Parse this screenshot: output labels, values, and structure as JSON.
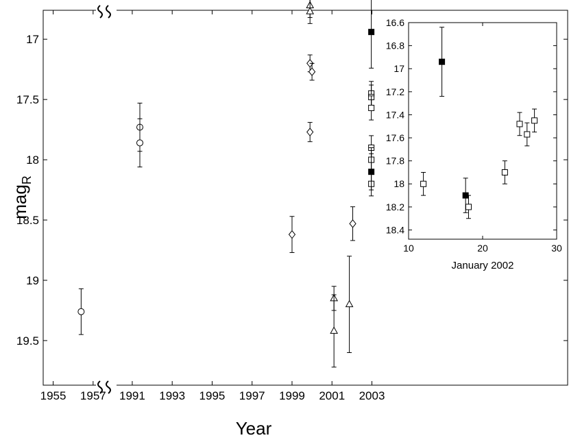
{
  "chart_data": [
    {
      "type": "scatter",
      "xlabel": "Year",
      "ylabel": "mag",
      "ylabel_subscript": "R",
      "y_inverted": true,
      "ylim": [
        16.76,
        19.87
      ],
      "yticks": [
        17,
        17.5,
        18,
        18.5,
        19,
        19.5
      ],
      "axis_break": true,
      "x_segments": [
        {
          "xlim": [
            1954.5,
            1957.8
          ],
          "xticks": [
            1955,
            1957
          ]
        },
        {
          "xlim": [
            1989.84,
            2012.8
          ],
          "xticks": [
            1991,
            1993,
            1995,
            1997,
            1999,
            2001,
            2003
          ]
        }
      ],
      "series": [
        {
          "marker": "circle",
          "filled": false,
          "color": "#000000",
          "x": [
            1956.4,
            1991.38,
            1991.38
          ],
          "values": [
            19.26,
            17.73,
            17.86
          ],
          "errors": [
            0.19,
            0.2,
            0.2
          ]
        },
        {
          "marker": "triangle",
          "filled": false,
          "color": "#000000",
          "x": [
            1999.9,
            1999.9,
            2001.1,
            2001.1,
            2001.87
          ],
          "values": [
            16.72,
            16.77,
            19.15,
            19.42,
            19.2
          ],
          "errors": [
            0.1,
            0.1,
            0.1,
            0.3,
            0.4
          ]
        },
        {
          "marker": "diamond",
          "filled": false,
          "color": "#000000",
          "x": [
            1999.0,
            1999.9,
            2000.0,
            1999.9,
            2002.04
          ],
          "values": [
            18.62,
            17.2,
            17.27,
            17.77,
            18.53
          ],
          "errors": [
            0.15,
            0.07,
            0.07,
            0.08,
            0.14
          ]
        },
        {
          "marker": "square",
          "filled": false,
          "color": "#000000",
          "x": [
            2002.97,
            2002.97,
            2002.97,
            2002.97,
            2002.97,
            2002.97
          ],
          "values": [
            17.45,
            17.48,
            17.57,
            17.9,
            18.0,
            18.2
          ],
          "errors": [
            0.1,
            0.1,
            0.1,
            0.1,
            0.1,
            0.1
          ]
        },
        {
          "marker": "square",
          "filled": true,
          "color": "#000000",
          "x": [
            2002.97,
            2002.97
          ],
          "values": [
            16.94,
            18.1
          ],
          "errors": [
            0.3,
            0.15
          ]
        }
      ]
    },
    {
      "type": "scatter",
      "xlabel": "January 2002",
      "y_inverted": true,
      "xlim": [
        10,
        30
      ],
      "xticks": [
        10,
        20,
        30
      ],
      "ylim": [
        16.6,
        18.48
      ],
      "yticks": [
        16.6,
        16.8,
        17,
        17.2,
        17.4,
        17.6,
        17.8,
        18,
        18.2,
        18.4
      ],
      "series": [
        {
          "marker": "square",
          "filled": false,
          "color": "#000000",
          "x": [
            12,
            18.1,
            23,
            25,
            26,
            27
          ],
          "values": [
            18.0,
            18.2,
            17.9,
            17.48,
            17.57,
            17.45
          ],
          "errors": [
            0.1,
            0.1,
            0.1,
            0.1,
            0.1,
            0.1
          ]
        },
        {
          "marker": "square",
          "filled": true,
          "color": "#000000",
          "x": [
            14.5,
            17.7
          ],
          "values": [
            16.94,
            18.1
          ],
          "errors": [
            0.3,
            0.15
          ]
        }
      ]
    }
  ]
}
